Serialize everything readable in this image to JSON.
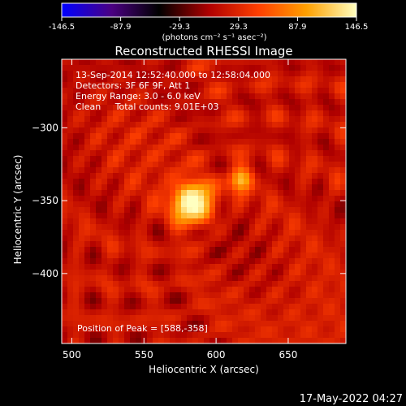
{
  "chart_data": {
    "type": "heatmap",
    "title": "Reconstructed RHESSI Image",
    "xlabel": "Heliocentric X (arcsec)",
    "ylabel": "Heliocentric Y (arcsec)",
    "xlim": [
      493,
      690
    ],
    "ylim": [
      -448,
      -253
    ],
    "x_ticks": [
      500,
      550,
      600,
      650
    ],
    "y_ticks": [
      -300,
      -350,
      -400
    ],
    "colorbar": {
      "range": [
        -146.5,
        146.5
      ],
      "ticks": [
        "-146.5",
        "-87.9",
        "-29.3",
        "29.3",
        "87.9",
        "146.5"
      ],
      "units": "(photons cm⁻² s⁻¹ asec⁻²)",
      "colors": [
        "#0000ff",
        "#4b0082",
        "#000000",
        "#b00000",
        "#ff4000",
        "#ffa000",
        "#ffffc0"
      ]
    },
    "annotations": [
      "13-Sep-2014 12:52:40.000 to 12:58:04.000",
      "Detectors: 3F 6F 9F, Att 1",
      "Energy Range: 3.0 - 6.0 keV",
      "Clean     Total counts: 9.01E+03"
    ],
    "peak_label": "Position of Peak = [588,-358]",
    "sources": [
      {
        "x": 584,
        "y": -352,
        "sigma": 10,
        "amp": 146.5
      },
      {
        "x": 617,
        "y": -335,
        "sigma": 6,
        "amp": 95
      }
    ],
    "grid": false
  },
  "footer": {
    "timestamp": "17-May-2022 04:27"
  }
}
